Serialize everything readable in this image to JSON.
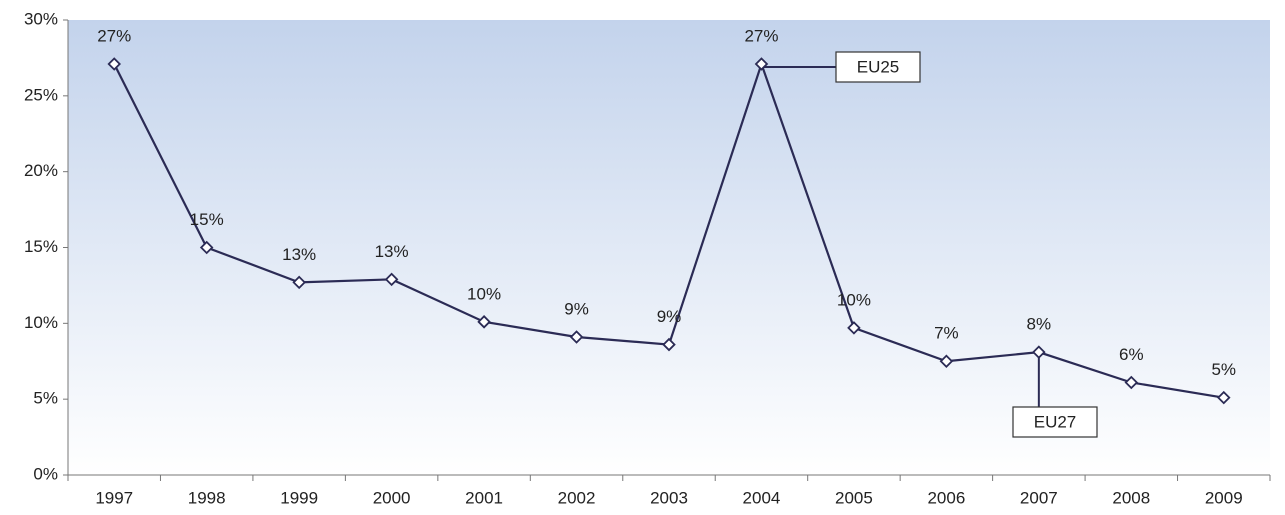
{
  "chart_data": {
    "type": "line",
    "categories": [
      "1997",
      "1998",
      "1999",
      "2000",
      "2001",
      "2002",
      "2003",
      "2004",
      "2005",
      "2006",
      "2007",
      "2008",
      "2009"
    ],
    "series": [
      {
        "name": null,
        "color": "#2b2b55",
        "values": [
          27.1,
          15.0,
          12.7,
          12.9,
          10.1,
          9.1,
          8.6,
          27.1,
          9.7,
          7.5,
          8.1,
          6.1,
          5.1
        ],
        "value_labels": [
          "27%",
          "15%",
          "13%",
          "13%",
          "10%",
          "9%",
          "9%",
          "27%",
          "10%",
          "7%",
          "8%",
          "6%",
          "5%"
        ]
      }
    ],
    "ylim": [
      0,
      30
    ],
    "yticks": [
      {
        "value": 0,
        "label": "0%"
      },
      {
        "value": 5,
        "label": "5%"
      },
      {
        "value": 10,
        "label": "10%"
      },
      {
        "value": 15,
        "label": "15%"
      },
      {
        "value": 20,
        "label": "20%"
      },
      {
        "value": 25,
        "label": "25%"
      },
      {
        "value": 30,
        "label": "30%"
      }
    ],
    "annotations": [
      "EU25",
      "EU27"
    ]
  }
}
